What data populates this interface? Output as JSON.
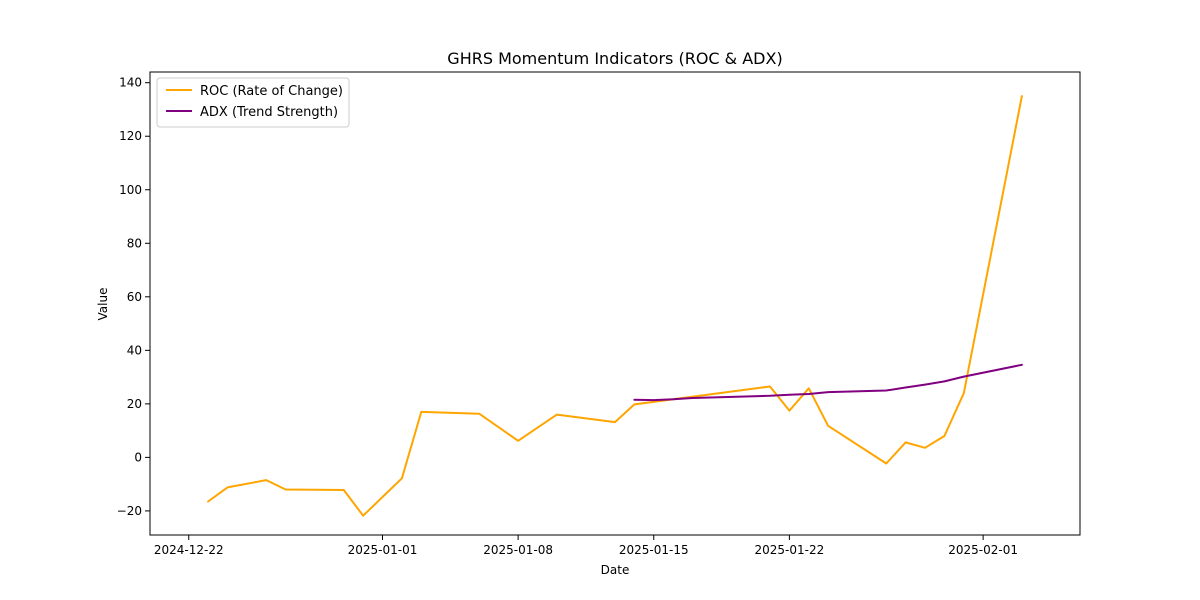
{
  "chart_data": {
    "type": "line",
    "title": "GHRS Momentum Indicators (ROC & ADX)",
    "xlabel": "Date",
    "ylabel": "Value",
    "xlim": [
      "2024-12-20",
      "2025-02-06"
    ],
    "ylim": [
      -29,
      144
    ],
    "x_ticks": [
      "2024-12-22",
      "2025-01-01",
      "2025-01-08",
      "2025-01-15",
      "2025-01-22",
      "2025-02-01"
    ],
    "y_ticks": [
      -20,
      0,
      20,
      40,
      60,
      80,
      100,
      120,
      140
    ],
    "grid": false,
    "legend": {
      "placement": "top-left"
    },
    "series": [
      {
        "name": "ROC (Rate of Change)",
        "color": "#FFA500",
        "x": [
          "2024-12-23",
          "2024-12-24",
          "2024-12-26",
          "2024-12-27",
          "2024-12-30",
          "2024-12-31",
          "2025-01-02",
          "2025-01-03",
          "2025-01-06",
          "2025-01-08",
          "2025-01-10",
          "2025-01-13",
          "2025-01-14",
          "2025-01-21",
          "2025-01-22",
          "2025-01-23",
          "2025-01-24",
          "2025-01-27",
          "2025-01-28",
          "2025-01-29",
          "2025-01-30",
          "2025-01-31",
          "2025-02-03"
        ],
        "values": [
          -16.5,
          -11.2,
          -8.5,
          -12.0,
          -12.2,
          -21.8,
          -7.8,
          17.0,
          16.3,
          6.2,
          16.0,
          13.2,
          19.8,
          26.5,
          17.5,
          25.8,
          11.8,
          -2.3,
          5.6,
          3.6,
          8.0,
          24.0,
          135.0
        ]
      },
      {
        "name": "ADX (Trend Strength)",
        "color": "#800080",
        "x": [
          "2025-01-14",
          "2025-01-15",
          "2025-01-16",
          "2025-01-17",
          "2025-01-21",
          "2025-01-22",
          "2025-01-23",
          "2025-01-24",
          "2025-01-27",
          "2025-01-28",
          "2025-01-29",
          "2025-01-30",
          "2025-01-31",
          "2025-02-03"
        ],
        "values": [
          21.5,
          21.4,
          21.7,
          22.2,
          23.0,
          23.4,
          23.7,
          24.4,
          25.0,
          26.1,
          27.2,
          28.4,
          30.2,
          34.6
        ]
      }
    ]
  }
}
